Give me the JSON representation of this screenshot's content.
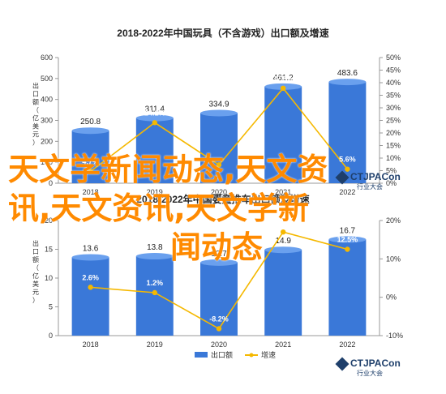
{
  "overlay": {
    "line1": "天文学新闻动态,天文资",
    "line2": "讯,天文资讯,天文学新",
    "line3": "闻动态"
  },
  "chart_data": [
    {
      "type": "bar",
      "title": "2018-2022年中国玩具（不含游戏）出口额及增速",
      "ylabel": "出口额（亿美元）",
      "categories": [
        "2018",
        "2019",
        "2020",
        "2021",
        "2022"
      ],
      "series": [
        {
          "name": "出口额",
          "values": [
            250.8,
            311.4,
            334.9,
            461.2,
            483.6
          ],
          "color": "#3a78d8"
        },
        {
          "name": "增速",
          "values": [
            4.7,
            24.1,
            7.3,
            37.8,
            5.6
          ],
          "color": "#f5b800",
          "unit": "%"
        }
      ],
      "value_labels": [
        "250.8",
        "311.4",
        "334.9",
        "461.2",
        "483.6"
      ],
      "pct_labels": [
        "4.7%",
        "24.1%",
        "",
        "37.8%",
        "5.6%"
      ],
      "ylim": [
        0,
        600
      ],
      "y2lim": [
        0,
        50
      ],
      "yticks": [
        "0",
        "100",
        "200",
        "300",
        "400",
        "500",
        "600"
      ],
      "y2ticks": [
        "0%",
        "5%",
        "10%",
        "15%",
        "20%",
        "25%",
        "30%",
        "35%",
        "40%",
        "45%",
        "50%"
      ],
      "brand_main": "CTJPACon",
      "brand_sub": "行业大会"
    },
    {
      "type": "bar",
      "title": "2018-2022年中国婴童推车出口额及增速",
      "ylabel": "出口额（亿美元）",
      "categories": [
        "2018",
        "2019",
        "2020",
        "2021",
        "2022"
      ],
      "series": [
        {
          "name": "出口额",
          "values": [
            13.6,
            13.8,
            12.7,
            14.9,
            16.7
          ],
          "color": "#3a78d8"
        },
        {
          "name": "增速",
          "values": [
            2.6,
            1.2,
            -8.2,
            17.0,
            12.5
          ],
          "color": "#f5b800",
          "unit": "%"
        }
      ],
      "value_labels": [
        "13.6",
        "13.8",
        "12.7",
        "14.9",
        "16.7"
      ],
      "pct_labels": [
        "2.6%",
        "1.2%",
        "-8.2%",
        "17.0%",
        "12.5%"
      ],
      "ylim": [
        0,
        20
      ],
      "y2lim": [
        -10,
        20
      ],
      "yticks": [
        "0",
        "5",
        "10",
        "15",
        "20"
      ],
      "y2ticks": [
        "-10%",
        "0%",
        "10%",
        "20%"
      ],
      "legend": [
        "出口额",
        "增速"
      ],
      "brand_main": "CTJPACon",
      "brand_sub": "行业大会"
    }
  ]
}
